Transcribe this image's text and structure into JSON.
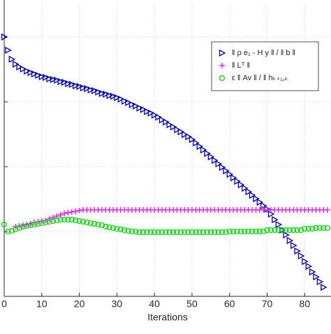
{
  "chart_data": {
    "type": "scatter",
    "x_label": "Iterations",
    "x": [
      0,
      1,
      2,
      3,
      4,
      5,
      6,
      7,
      8,
      9,
      10,
      11,
      12,
      13,
      14,
      15,
      16,
      17,
      18,
      19,
      20,
      21,
      22,
      23,
      24,
      25,
      26,
      27,
      28,
      29,
      30,
      31,
      32,
      33,
      34,
      35,
      36,
      37,
      38,
      39,
      40,
      41,
      42,
      43,
      44,
      45,
      46,
      47,
      48,
      49,
      50,
      51,
      52,
      53,
      54,
      55,
      56,
      57,
      58,
      59,
      60,
      61,
      62,
      63,
      64,
      65,
      66,
      67,
      68,
      69,
      70,
      71,
      72,
      73,
      74,
      75,
      76,
      77,
      78,
      79,
      80,
      81,
      82,
      83,
      84,
      85,
      86
    ],
    "xlim": [
      0,
      87
    ],
    "xticks": [
      0,
      10,
      20,
      30,
      40,
      50,
      60,
      70,
      80
    ],
    "ylim": [
      0,
      420
    ],
    "yticks": [
      0,
      93,
      186,
      279,
      372
    ],
    "grid": true,
    "legend": "upper right",
    "series": [
      {
        "name": "‖ ρ e₁ - H y ‖ / ‖ b ‖",
        "color": "#0000c8",
        "marker": "triangle-right",
        "values": [
          372,
          353,
          340,
          333,
          329,
          326,
          323,
          321,
          319,
          317,
          315,
          314,
          312,
          311,
          310,
          308,
          307,
          305,
          304,
          302,
          301,
          299,
          298,
          296,
          295,
          293,
          291,
          290,
          288,
          287,
          285,
          283,
          280,
          278,
          275,
          273,
          270,
          268,
          265,
          263,
          260,
          257,
          253,
          250,
          246,
          243,
          239,
          236,
          232,
          229,
          225,
          220,
          215,
          210,
          205,
          200,
          195,
          190,
          185,
          180,
          175,
          170,
          165,
          160,
          155,
          150,
          145,
          140,
          135,
          130,
          125,
          118,
          110,
          103,
          95,
          88,
          80,
          73,
          65,
          58,
          50,
          43,
          35,
          28,
          21,
          13,
          null
        ]
      },
      {
        "name": "‖ Lᵀ ‖",
        "color": "#ff00ff",
        "marker": "plus",
        "values": [
          null,
          null,
          null,
          100,
          101,
          102,
          103,
          104,
          106,
          107,
          108,
          109,
          111,
          113,
          115,
          117,
          119,
          120,
          121,
          122,
          123,
          124,
          124,
          124,
          124,
          124,
          124,
          124,
          124,
          124,
          124,
          124,
          124,
          124,
          124,
          124,
          124,
          124,
          124,
          124,
          124,
          124,
          124,
          124,
          124,
          124,
          124,
          124,
          124,
          124,
          124,
          124,
          124,
          124,
          124,
          124,
          124,
          124,
          124,
          124,
          124,
          124,
          124,
          124,
          124,
          124,
          124,
          124,
          124,
          124,
          124,
          124,
          124,
          124,
          124,
          124,
          124,
          124,
          124,
          124,
          124,
          124,
          124,
          124,
          124,
          124,
          124
        ]
      },
      {
        "name": "ϵ ‖ Av ‖ / ‖ hₖ₊₁,ₖ",
        "color": "#00dd00",
        "marker": "circle",
        "values": [
          103,
          93,
          94,
          96,
          98,
          100,
          101,
          102,
          103,
          104,
          105,
          106,
          107,
          108,
          109,
          110,
          110,
          110,
          110,
          109,
          108,
          107,
          106,
          105,
          104,
          103,
          102,
          100,
          99,
          98,
          97,
          96,
          95,
          94,
          93,
          93,
          92,
          92,
          92,
          92,
          92,
          92,
          92,
          92,
          92,
          92,
          92,
          92,
          92,
          92,
          92,
          92,
          92,
          92,
          92,
          92,
          92,
          92,
          92,
          92,
          93,
          93,
          93,
          93,
          93,
          93,
          93,
          93,
          93,
          93,
          95,
          95,
          95,
          95,
          95,
          95,
          95,
          95,
          95,
          95,
          97,
          97,
          97,
          98,
          98,
          98,
          98
        ]
      }
    ]
  }
}
